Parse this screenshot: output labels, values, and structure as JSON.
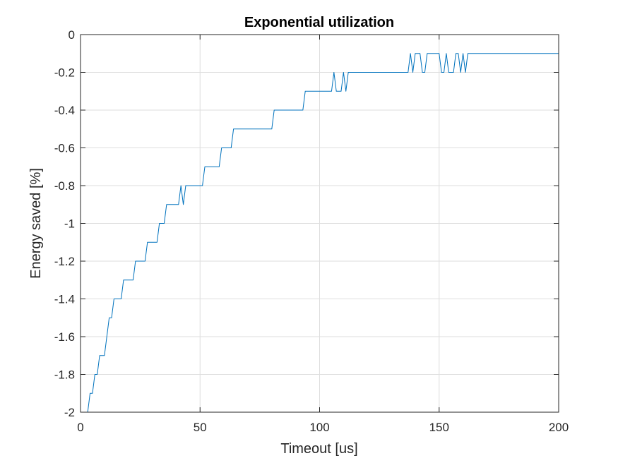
{
  "chart_data": {
    "type": "line",
    "title": "Exponential utilization",
    "xlabel": "Timeout [us]",
    "ylabel": "Energy saved [%]",
    "xlim": [
      0,
      200
    ],
    "ylim": [
      -2,
      0
    ],
    "grid": true,
    "x_ticks": [
      0,
      50,
      100,
      150,
      200
    ],
    "x_tick_labels": [
      "0",
      "50",
      "100",
      "150",
      "200"
    ],
    "y_ticks": [
      0,
      -0.2,
      -0.4,
      -0.6,
      -0.8,
      -1,
      -1.2,
      -1.4,
      -1.6,
      -1.8,
      -2
    ],
    "y_tick_labels": [
      "0",
      "-0.2",
      "-0.4",
      "-0.6",
      "-0.8",
      "-1",
      "-1.2",
      "-1.4",
      "-1.6",
      "-1.8",
      "-2"
    ],
    "colors": {
      "line": "#0072bd",
      "grid": "#dedede",
      "axis": "#262626"
    },
    "series": [
      {
        "x": [
          0,
          1,
          2,
          3,
          4,
          5,
          6,
          7,
          8,
          9,
          10,
          11,
          12,
          13,
          14,
          15,
          16,
          17,
          18,
          19,
          20,
          21,
          22,
          23,
          24,
          25,
          26,
          27,
          28,
          29,
          30,
          31,
          32,
          33,
          34,
          35,
          36,
          37,
          38,
          39,
          40,
          41,
          42,
          43,
          44,
          45,
          46,
          47,
          48,
          49,
          50,
          51,
          52,
          53,
          54,
          55,
          56,
          57,
          58,
          59,
          60,
          61,
          62,
          63,
          64,
          65,
          70,
          75,
          80,
          81,
          85,
          90,
          93,
          94,
          100,
          105,
          106,
          107,
          108,
          109,
          110,
          111,
          112,
          115,
          120,
          125,
          130,
          135,
          137,
          138,
          139,
          140,
          141,
          142,
          143,
          144,
          145,
          146,
          147,
          148,
          149,
          150,
          151,
          152,
          153,
          154,
          155,
          156,
          157,
          158,
          159,
          160,
          161,
          162,
          170,
          180,
          190,
          200
        ],
        "values": [
          -2.0,
          -2.0,
          -2.0,
          -2.0,
          -1.9,
          -1.9,
          -1.8,
          -1.8,
          -1.7,
          -1.7,
          -1.7,
          -1.6,
          -1.5,
          -1.5,
          -1.4,
          -1.4,
          -1.4,
          -1.4,
          -1.3,
          -1.3,
          -1.3,
          -1.3,
          -1.3,
          -1.2,
          -1.2,
          -1.2,
          -1.2,
          -1.2,
          -1.1,
          -1.1,
          -1.1,
          -1.1,
          -1.1,
          -1.0,
          -1.0,
          -1.0,
          -0.9,
          -0.9,
          -0.9,
          -0.9,
          -0.9,
          -0.9,
          -0.8,
          -0.9,
          -0.8,
          -0.8,
          -0.8,
          -0.8,
          -0.8,
          -0.8,
          -0.8,
          -0.8,
          -0.7,
          -0.7,
          -0.7,
          -0.7,
          -0.7,
          -0.7,
          -0.7,
          -0.6,
          -0.6,
          -0.6,
          -0.6,
          -0.6,
          -0.5,
          -0.5,
          -0.5,
          -0.5,
          -0.5,
          -0.4,
          -0.4,
          -0.4,
          -0.4,
          -0.3,
          -0.3,
          -0.3,
          -0.2,
          -0.3,
          -0.3,
          -0.3,
          -0.2,
          -0.3,
          -0.2,
          -0.2,
          -0.2,
          -0.2,
          -0.2,
          -0.2,
          -0.2,
          -0.1,
          -0.2,
          -0.1,
          -0.1,
          -0.1,
          -0.2,
          -0.2,
          -0.1,
          -0.1,
          -0.1,
          -0.1,
          -0.1,
          -0.1,
          -0.2,
          -0.2,
          -0.1,
          -0.2,
          -0.2,
          -0.2,
          -0.1,
          -0.1,
          -0.2,
          -0.1,
          -0.2,
          -0.1,
          -0.1,
          -0.1,
          -0.1,
          -0.1
        ]
      }
    ]
  }
}
